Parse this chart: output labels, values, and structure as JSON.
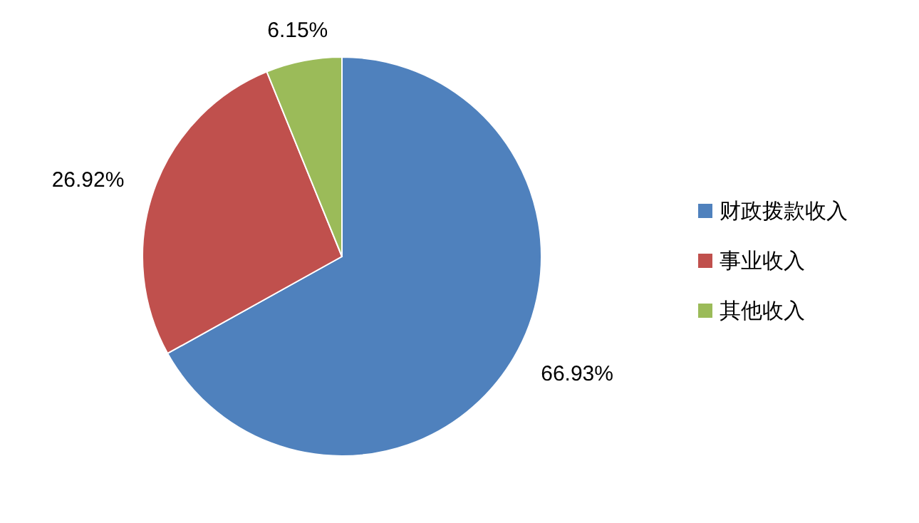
{
  "chart_data": {
    "type": "pie",
    "categories": [
      "财政拨款收入",
      "事业收入",
      "其他收入"
    ],
    "values": [
      66.93,
      26.92,
      6.15
    ],
    "colors": [
      "#4f81bd",
      "#c0504d",
      "#9bbb59"
    ],
    "value_labels": [
      "66.93%",
      "26.92%",
      "6.15%"
    ],
    "legend": "right"
  }
}
